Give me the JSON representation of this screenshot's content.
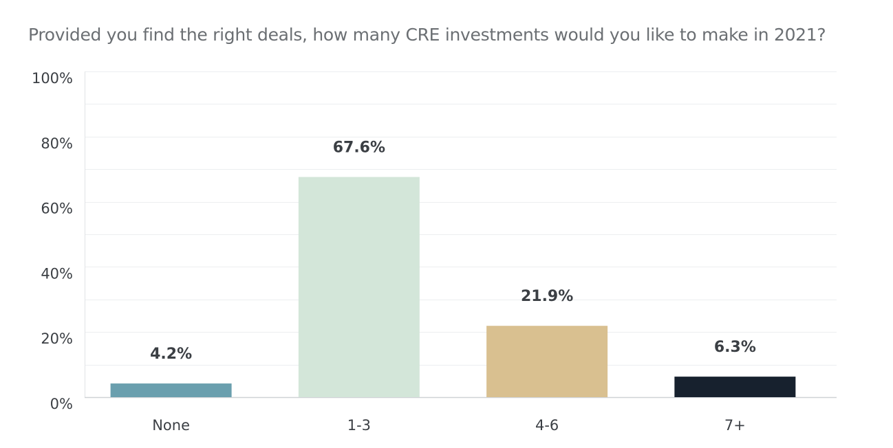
{
  "chart_data": {
    "type": "bar",
    "title": "Provided you find the right deals, how many CRE investments would you like to make in 2021?",
    "categories": [
      "None",
      "1-3",
      "4-6",
      "7+"
    ],
    "values": [
      4.2,
      67.6,
      21.9,
      6.3
    ],
    "value_labels": [
      "4.2%",
      "67.6%",
      "21.9%",
      "6.3%"
    ],
    "colors": [
      "#6a9fae",
      "#d3e6d9",
      "#d9c090",
      "#17212e"
    ],
    "ylim": [
      0,
      100
    ],
    "yticks": [
      0,
      20,
      40,
      60,
      80,
      100
    ],
    "ytick_labels": [
      "0%",
      "20%",
      "40%",
      "60%",
      "80%",
      "100%"
    ],
    "xlabel": "",
    "ylabel": "",
    "grid": true,
    "legend": "none"
  }
}
